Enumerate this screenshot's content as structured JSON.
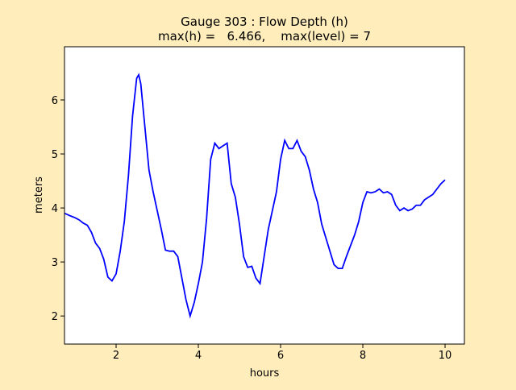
{
  "chart_data": {
    "type": "line",
    "title": [
      "Gauge 303 : Flow Depth (h)",
      "max(h) =   6.466,    max(level) = 7"
    ],
    "x_label": "hours",
    "y_label": "meters",
    "x": [
      0.75,
      0.9,
      1.0,
      1.1,
      1.2,
      1.3,
      1.4,
      1.5,
      1.6,
      1.7,
      1.8,
      1.9,
      2.0,
      2.1,
      2.2,
      2.3,
      2.4,
      2.5,
      2.55,
      2.6,
      2.7,
      2.8,
      2.9,
      3.0,
      3.1,
      3.2,
      3.3,
      3.4,
      3.5,
      3.6,
      3.7,
      3.8,
      3.9,
      4.0,
      4.1,
      4.2,
      4.3,
      4.4,
      4.5,
      4.6,
      4.7,
      4.8,
      4.9,
      5.0,
      5.1,
      5.2,
      5.3,
      5.4,
      5.5,
      5.6,
      5.7,
      5.8,
      5.9,
      6.0,
      6.1,
      6.2,
      6.3,
      6.4,
      6.5,
      6.6,
      6.7,
      6.8,
      6.9,
      7.0,
      7.1,
      7.2,
      7.3,
      7.4,
      7.5,
      7.6,
      7.7,
      7.8,
      7.9,
      8.0,
      8.1,
      8.2,
      8.3,
      8.4,
      8.5,
      8.6,
      8.7,
      8.8,
      8.9,
      9.0,
      9.1,
      9.2,
      9.3,
      9.4,
      9.5,
      9.6,
      9.7,
      9.8,
      9.9,
      10.0
    ],
    "series": [
      {
        "color": "#0000ff",
        "values": [
          3.9,
          3.85,
          3.82,
          3.78,
          3.72,
          3.68,
          3.55,
          3.35,
          3.25,
          3.05,
          2.72,
          2.65,
          2.78,
          3.2,
          3.75,
          4.6,
          5.7,
          6.4,
          6.466,
          6.3,
          5.5,
          4.7,
          4.3,
          3.95,
          3.6,
          3.22,
          3.2,
          3.2,
          3.1,
          2.7,
          2.3,
          2.0,
          2.25,
          2.6,
          3.0,
          3.8,
          4.9,
          5.2,
          5.1,
          5.15,
          5.2,
          4.45,
          4.2,
          3.7,
          3.1,
          2.9,
          2.92,
          2.7,
          2.6,
          3.1,
          3.6,
          3.95,
          4.3,
          4.9,
          5.25,
          5.1,
          5.1,
          5.25,
          5.05,
          4.95,
          4.7,
          4.35,
          4.1,
          3.7,
          3.45,
          3.2,
          2.95,
          2.88,
          2.88,
          3.1,
          3.3,
          3.5,
          3.75,
          4.1,
          4.3,
          4.28,
          4.3,
          4.35,
          4.28,
          4.3,
          4.25,
          4.05,
          3.95,
          4.0,
          3.95,
          3.98,
          4.05,
          4.05,
          4.15,
          4.2,
          4.25,
          4.35,
          4.45,
          4.52
        ]
      }
    ],
    "xlim": [
      0.745,
      10.47
    ],
    "xticks": [
      2,
      4,
      6,
      8,
      10
    ],
    "ylim": [
      1.48,
      6.985
    ],
    "yticks": [
      2,
      3,
      4,
      5,
      6
    ]
  }
}
